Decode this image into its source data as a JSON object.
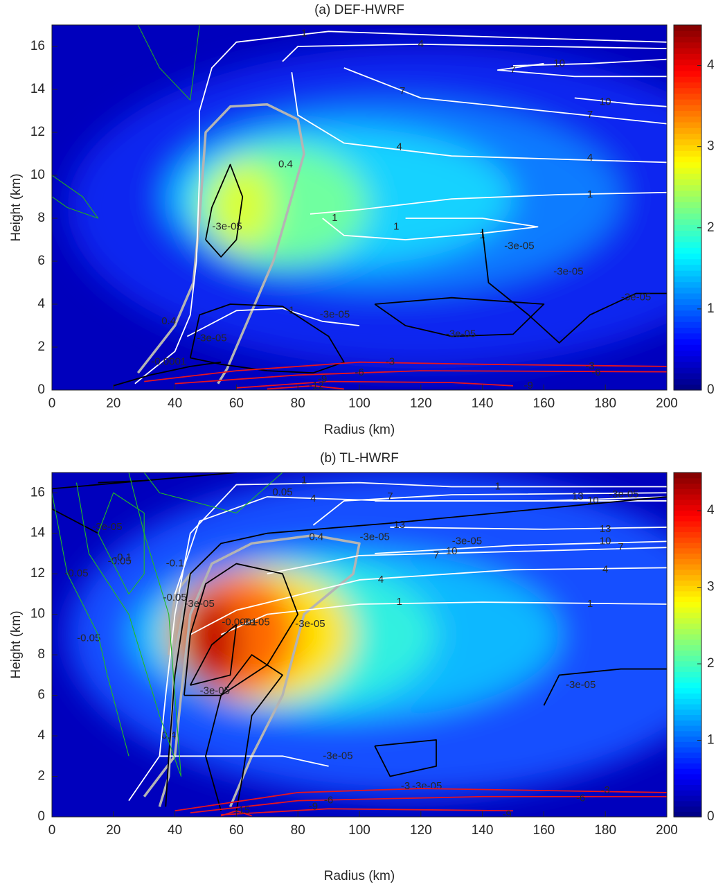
{
  "chart_data": [
    {
      "type": "contour",
      "title": "(a) DEF-HWRF",
      "xlabel": "Radius (km)",
      "ylabel": "Height (km)",
      "xlim": [
        0,
        200
      ],
      "xticks": [
        0,
        20,
        40,
        60,
        80,
        100,
        120,
        140,
        160,
        180,
        200
      ],
      "ylim": [
        0,
        17
      ],
      "yticks": [
        0,
        2,
        4,
        6,
        8,
        10,
        12,
        14,
        16
      ],
      "colorbar": {
        "clim": [
          0,
          4.5
        ],
        "ticks": [
          0,
          1,
          2,
          3,
          4
        ],
        "colormap": "jet"
      },
      "contours": [
        {
          "color": "#ffffff",
          "levels": [
            1,
            4,
            7,
            10
          ]
        },
        {
          "color": "#000000",
          "levels": [
            {
              "value": -3e-05,
              "label": "-3e-05"
            },
            -0.0001
          ]
        },
        {
          "color": "#e8141e",
          "levels": [
            -3,
            -6,
            -9,
            -12
          ]
        },
        {
          "color": "#22aa22",
          "levels": []
        },
        {
          "color": "#b4b4b4",
          "levels": [
            0.4
          ]
        }
      ]
    },
    {
      "type": "contour",
      "title": "(b) TL-HWRF",
      "xlabel": "Radius (km)",
      "ylabel": "Height (km)",
      "xlim": [
        0,
        200
      ],
      "xticks": [
        0,
        20,
        40,
        60,
        80,
        100,
        120,
        140,
        160,
        180,
        200
      ],
      "ylim": [
        0,
        17
      ],
      "yticks": [
        0,
        2,
        4,
        6,
        8,
        10,
        12,
        14,
        16
      ],
      "colorbar": {
        "clim": [
          0,
          4.5
        ],
        "ticks": [
          0,
          1,
          2,
          3,
          4
        ],
        "colormap": "jet"
      },
      "contours": [
        {
          "color": "#ffffff",
          "levels": [
            1,
            4,
            7,
            10,
            13
          ]
        },
        {
          "color": "#000000",
          "levels": [
            {
              "value": -3e-05,
              "label": "-3e-05"
            },
            -0.0001
          ]
        },
        {
          "color": "#e8141e",
          "levels": [
            -3,
            -6,
            -9,
            -15
          ]
        },
        {
          "color": "#22bb22",
          "levels": [
            0.05,
            -0.05,
            -0.1
          ]
        },
        {
          "color": "#b4b4b4",
          "levels": [
            0.4
          ]
        }
      ]
    }
  ]
}
